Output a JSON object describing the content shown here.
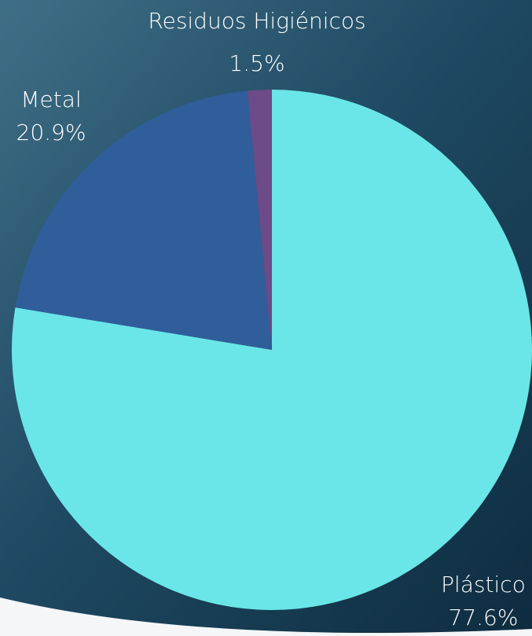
{
  "chart_data": {
    "type": "pie",
    "categories": [
      "Plástico",
      "Metal",
      "Residuos Higiénicos"
    ],
    "values": [
      77.6,
      20.9,
      1.5
    ],
    "value_labels": [
      "77.6%",
      "20.9%",
      "1.5%"
    ],
    "colors": [
      "#6ae6e8",
      "#2f5e9a",
      "#6d4a88"
    ]
  }
}
